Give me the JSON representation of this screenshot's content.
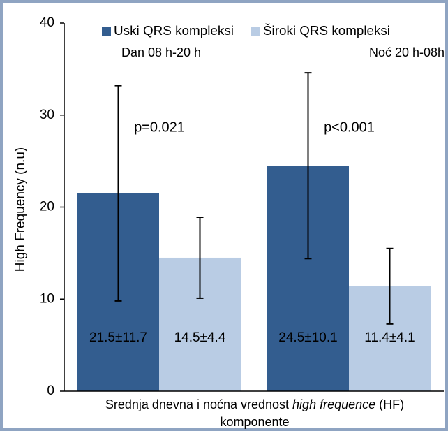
{
  "chart_data": {
    "type": "bar",
    "categories": [
      "Dan 08 h-20 h",
      "Noć 20 h-08h"
    ],
    "series": [
      {
        "name": "Uski QRS kompleksi",
        "color": "#335d8f",
        "values": [
          21.5,
          24.5
        ],
        "errors": [
          11.7,
          10.1
        ],
        "value_labels": [
          "21.5±11.7",
          "24.5±10.1"
        ]
      },
      {
        "name": "Široki QRS kompleksi",
        "color": "#b9cce4",
        "values": [
          14.5,
          11.4
        ],
        "errors": [
          4.4,
          4.1
        ],
        "value_labels": [
          "14.5±4.4",
          "11.4±4.1"
        ]
      }
    ],
    "annotations": [
      "p=0.021",
      "p<0.001"
    ],
    "ylabel": "High Frequency (n.u)",
    "xlabel": {
      "before": "Srednja dnevna i noćna vrednost ",
      "italic": "high frequence",
      "after": " (HF)",
      "second_line": "komponente"
    },
    "ylim": [
      0,
      40
    ],
    "yticks": [
      0,
      10,
      20,
      30,
      40
    ],
    "grid": false
  }
}
